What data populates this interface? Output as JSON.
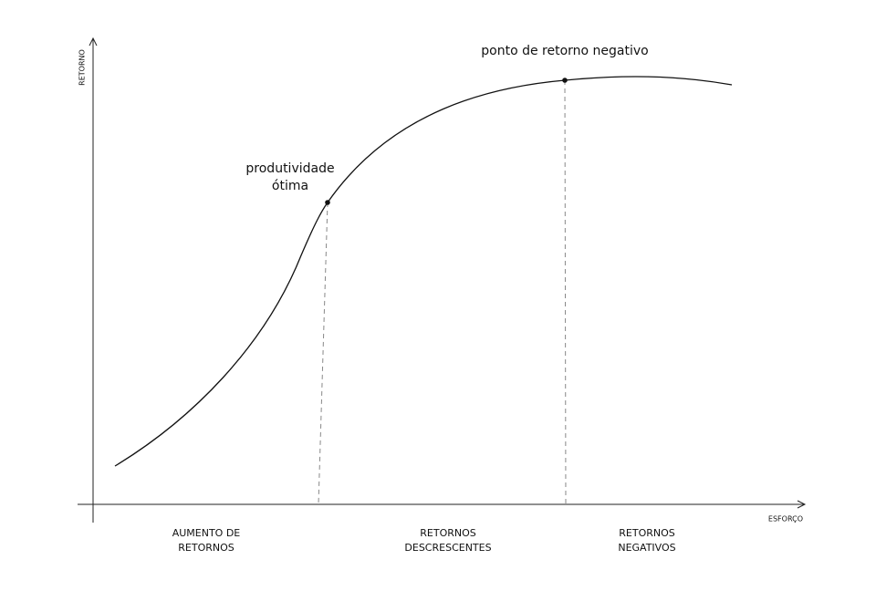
{
  "axes": {
    "y_label": "RETORNO",
    "x_label": "ESFORÇO"
  },
  "annotations": {
    "negative_point": "ponto de retorno negativo",
    "optimal": [
      "produtividade",
      "ótima"
    ]
  },
  "regions": [
    {
      "lines": [
        "AUMENTO DE",
        "RETORNOS"
      ]
    },
    {
      "lines": [
        "RETORNOS",
        "DESCRESCENTES"
      ]
    },
    {
      "lines": [
        "RETORNOS",
        "NEGATIVOS"
      ]
    }
  ]
}
